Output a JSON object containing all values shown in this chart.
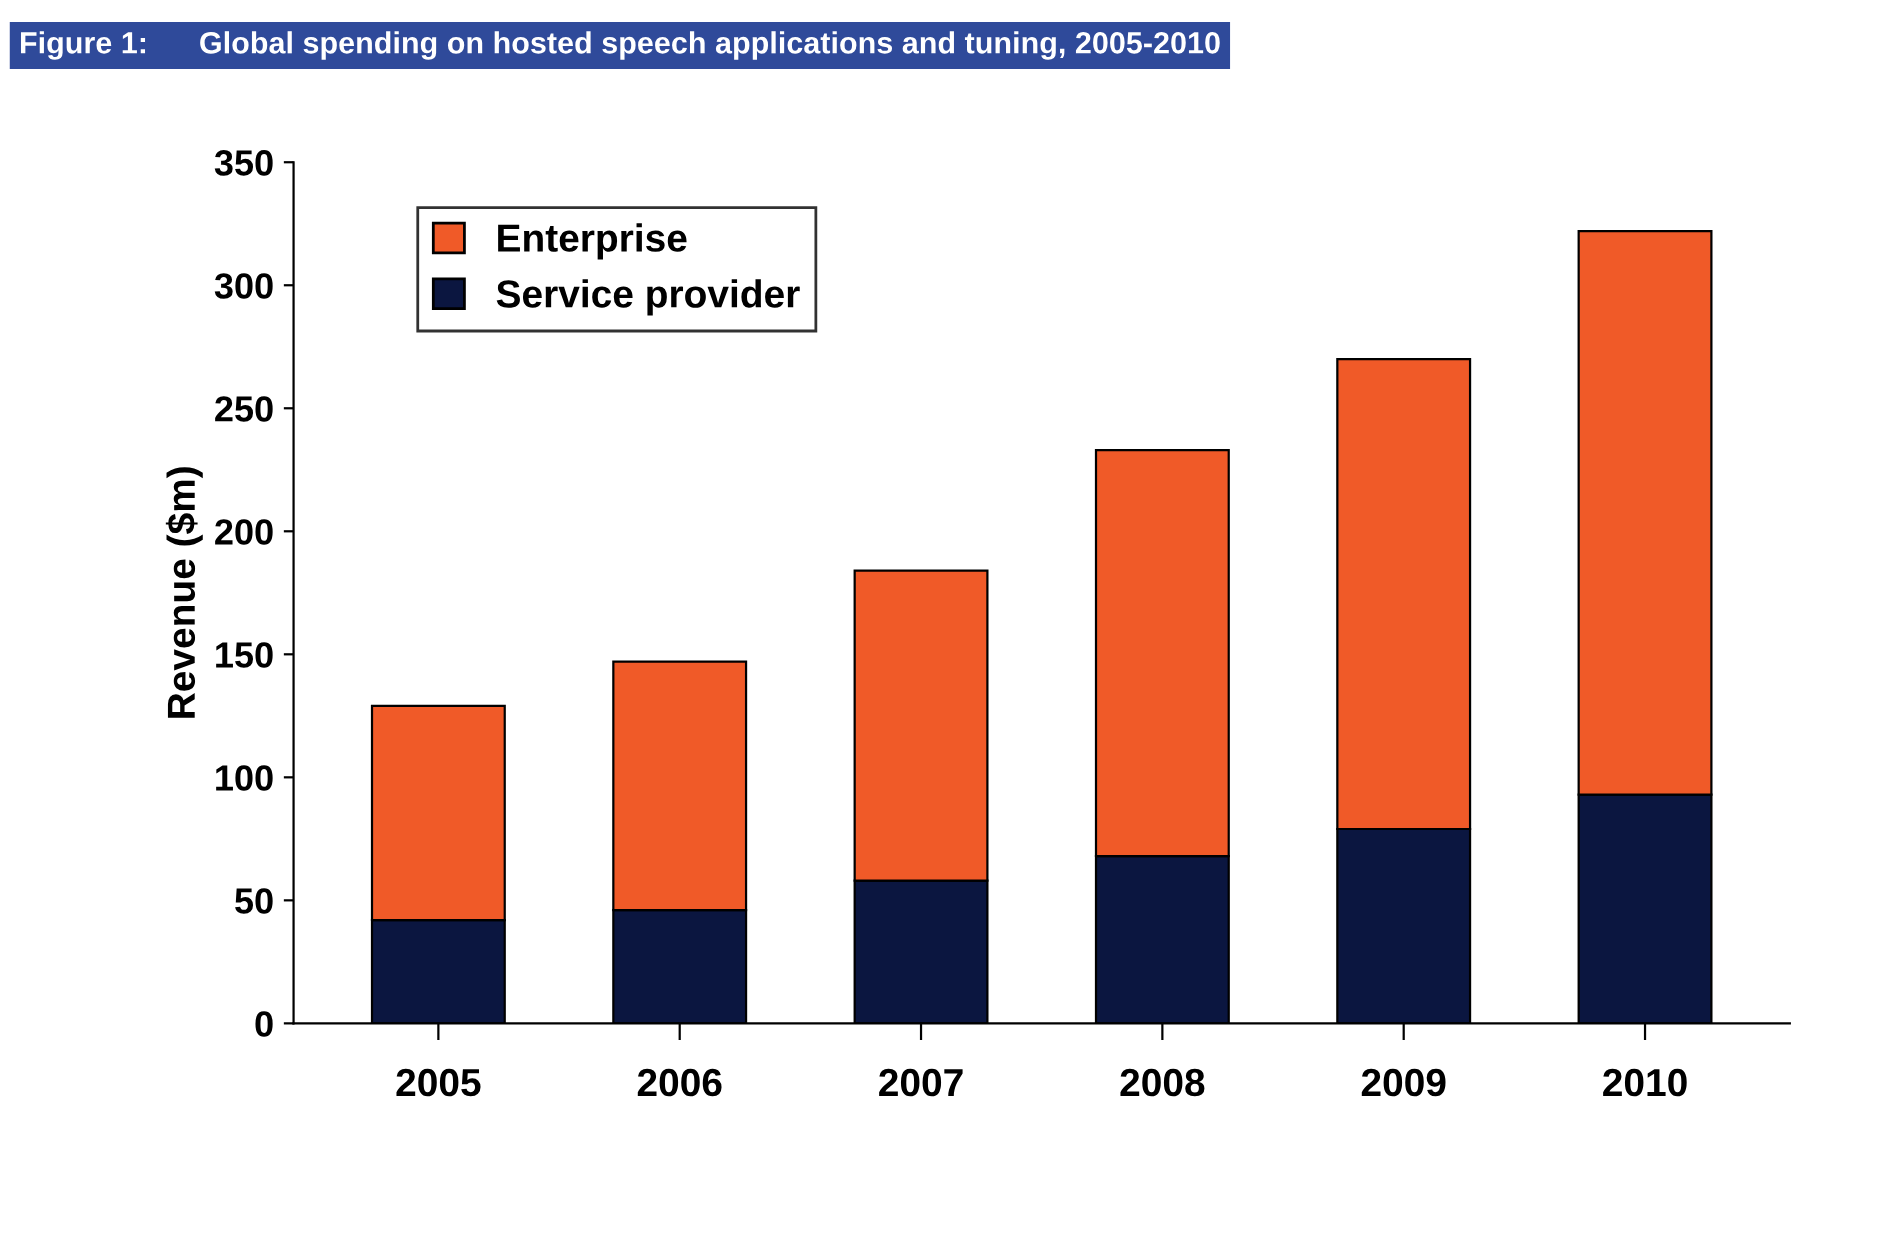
{
  "chart_data": {
    "type": "bar",
    "title": "Figure 1:      Global spending on hosted speech applications and tuning, 2005-2010",
    "ylabel": "Revenue ($m)",
    "categories": [
      "2005",
      "2006",
      "2007",
      "2008",
      "2009",
      "2010"
    ],
    "stacked": true,
    "series": [
      {
        "name": "Service provider",
        "color": "#0b1640",
        "values": [
          42,
          46,
          58,
          68,
          79,
          93
        ]
      },
      {
        "name": "Enterprise",
        "color": "#f05a28",
        "values": [
          87,
          101,
          126,
          165,
          191,
          229
        ]
      }
    ],
    "ylim": [
      0,
      350
    ],
    "yticks": [
      0,
      50,
      100,
      150,
      200,
      250,
      300,
      350
    ],
    "grid": false,
    "legend": "top left"
  }
}
